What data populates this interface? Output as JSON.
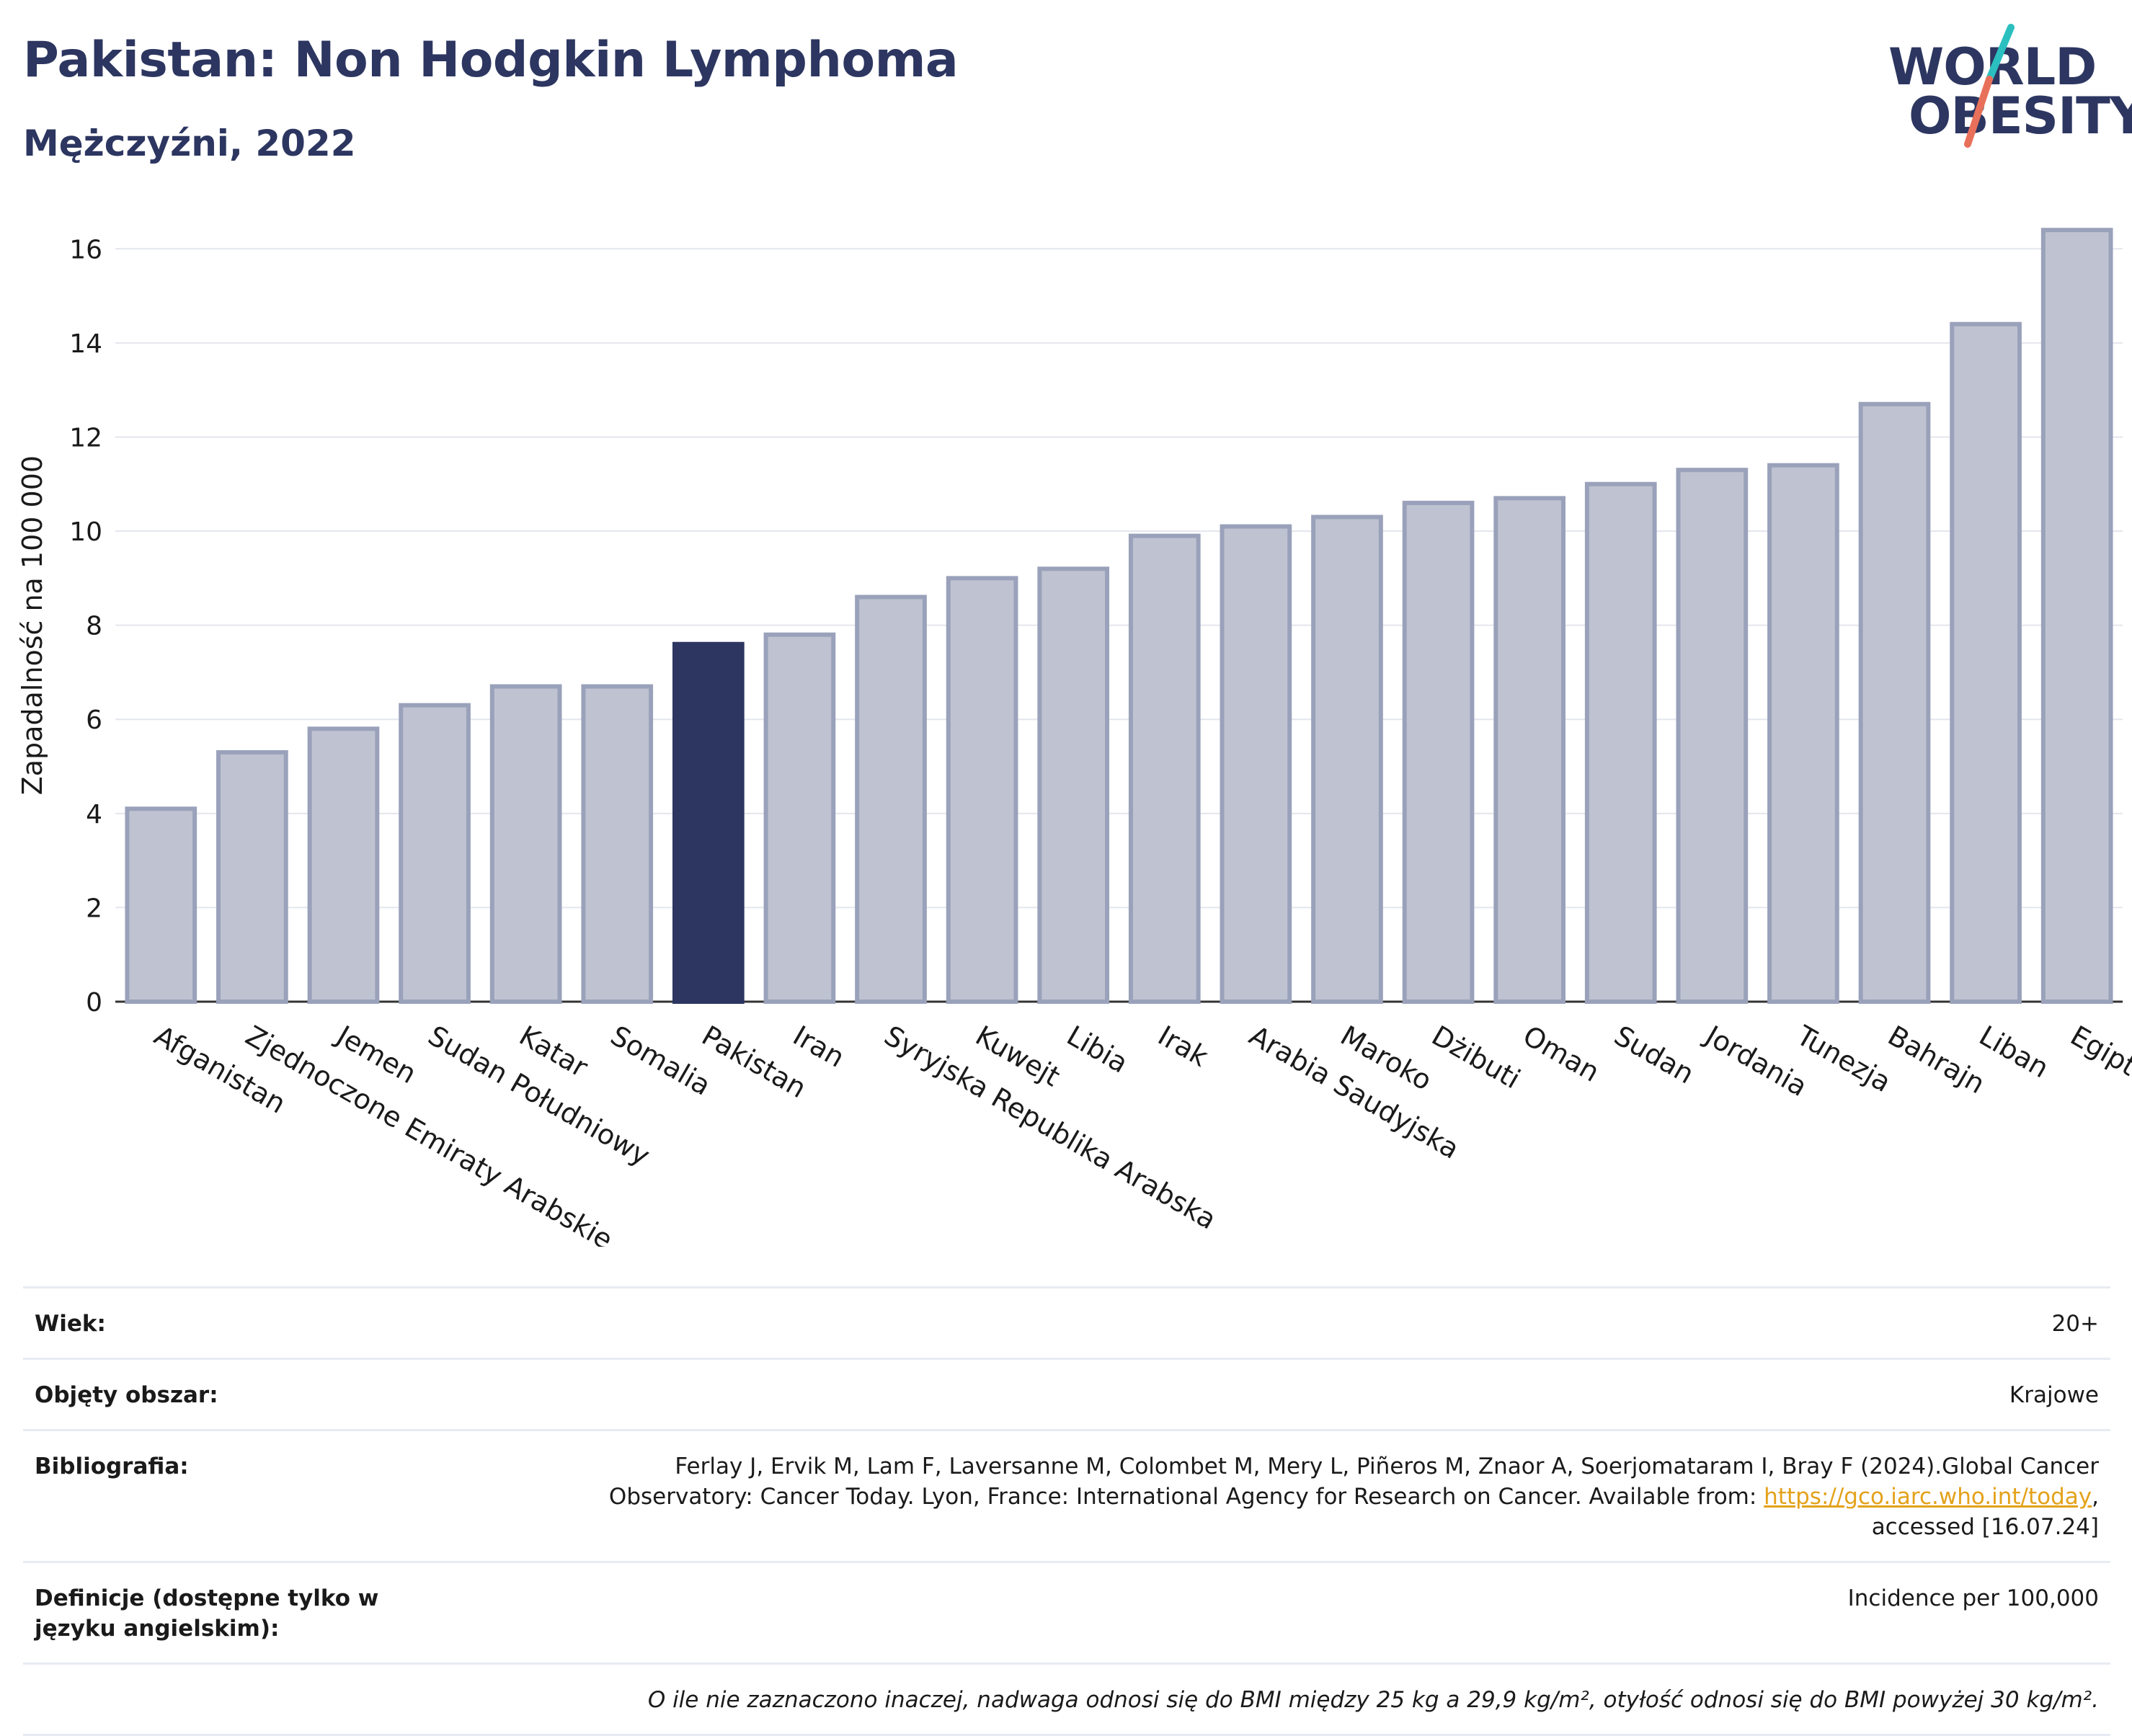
{
  "header": {
    "title": "Pakistan: Non Hodgkin Lymphoma",
    "subtitle": "Mężczyźni, 2022"
  },
  "logo": {
    "line1": "WORLD",
    "line2": "OBESITY",
    "accent_teal": "#2bbfbf",
    "accent_coral": "#e8705a"
  },
  "colors": {
    "bar": "#bfc3d1",
    "bar_stroke": "#9aa1ba",
    "highlight": "#2c3660",
    "grid": "#e4e6ee",
    "text_dark": "#2c3660",
    "link": "#e3a21a"
  },
  "chart_data": {
    "type": "bar",
    "ylabel": "Zapadalność na 100 000",
    "ylim": [
      0,
      17
    ],
    "yticks": [
      0,
      2,
      4,
      6,
      8,
      10,
      12,
      14,
      16
    ],
    "grid": true,
    "highlight": "Pakistan",
    "categories": [
      "Afganistan",
      "Zjednoczone Emiraty Arabskie",
      "Jemen",
      "Sudan Południowy",
      "Katar",
      "Somalia",
      "Pakistan",
      "Iran",
      "Syryjska Republika Arabska",
      "Kuwejt",
      "Libia",
      "Irak",
      "Arabia Saudyjska",
      "Maroko",
      "Dżibuti",
      "Oman",
      "Sudan",
      "Jordania",
      "Tunezja",
      "Bahrajn",
      "Liban",
      "Egipt"
    ],
    "values": [
      4.1,
      5.3,
      5.8,
      6.3,
      6.7,
      6.7,
      7.6,
      7.8,
      8.6,
      9.0,
      9.2,
      9.9,
      10.1,
      10.3,
      10.6,
      10.7,
      11.0,
      11.3,
      11.4,
      12.7,
      14.4,
      16.4
    ]
  },
  "info": {
    "age_label": "Wiek:",
    "age_value": "20+",
    "coverage_label": "Objęty obszar:",
    "coverage_value": "Krajowe",
    "bib_label": "Bibliografia:",
    "bib_text_1": "Ferlay J, Ervik M, Lam F, Laversanne M, Colombet M, Mery L, Piñeros M, Znaor A, Soerjomataram I, Bray F (2024).Global Cancer",
    "bib_text_2": "Observatory: Cancer Today. Lyon, France: International Agency for Research on Cancer. Available from: ",
    "bib_link": "https://gco.iarc.who.int/today",
    "bib_text_3": ",",
    "bib_text_4": "accessed [16.07.24]",
    "def_label": "Definicje (dostępne tylko w języku angielskim):",
    "def_value": "Incidence per 100,000",
    "footnote": "O ile nie zaznaczono inaczej, nadwaga odnosi się do BMI między 25 kg a 29,9 kg/m², otyłość odnosi się do BMI powyżej 30 kg/m²."
  }
}
